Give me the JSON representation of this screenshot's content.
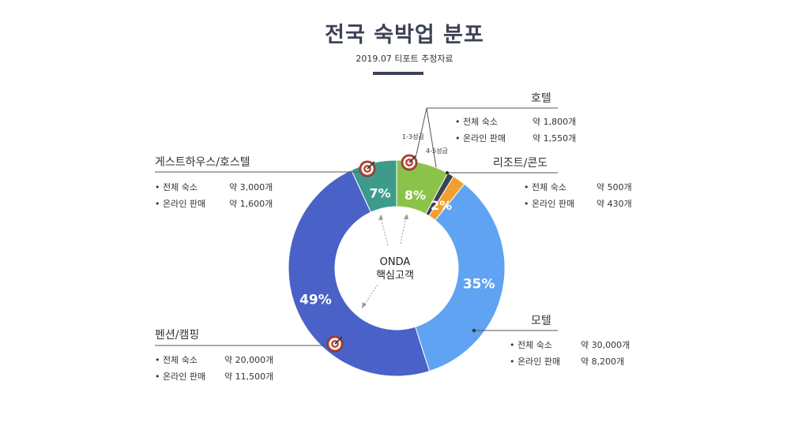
{
  "title": "전국 숙박업 분포",
  "subtitle": "2019.07 티포트 추정자료",
  "center": {
    "line1": "ONDA",
    "line2": "핵심고객"
  },
  "chart_data": {
    "type": "pie",
    "donut": true,
    "slices": [
      {
        "name": "호텔 1-3성급",
        "value": 8,
        "label": "8%",
        "color": "#8bc34a"
      },
      {
        "name": "호텔 4-5성급",
        "value": 1,
        "label": "",
        "color": "#3d4356"
      },
      {
        "name": "리조트/콘도",
        "value": 2,
        "label": "2%",
        "color": "#f0a030"
      },
      {
        "name": "모텔",
        "value": 35,
        "label": "35%",
        "color": "#5fa3f2"
      },
      {
        "name": "펜션/캠핑",
        "value": 49,
        "label": "49%",
        "color": "#4a62c7"
      },
      {
        "name": "게스트하우스/호스텔",
        "value": 7,
        "label": "7%",
        "color": "#3e9b8c"
      }
    ]
  },
  "hotel_sublabels": {
    "low": "1-3성급",
    "high": "4-5성급"
  },
  "categories": {
    "hotel": {
      "title": "호텔",
      "rows": [
        {
          "k": "전체 숙소",
          "v": "약 1,800개"
        },
        {
          "k": "온라인 판매",
          "v": "약 1,550개"
        }
      ]
    },
    "resort": {
      "title": "리조트/콘도",
      "rows": [
        {
          "k": "전체 숙소",
          "v": "약 500개"
        },
        {
          "k": "온라인 판매",
          "v": "약 430개"
        }
      ]
    },
    "motel": {
      "title": "모텔",
      "rows": [
        {
          "k": "전체 숙소",
          "v": "약 30,000개"
        },
        {
          "k": "온라인 판매",
          "v": "약 8,200개"
        }
      ]
    },
    "pension": {
      "title": "펜션/캠핑",
      "rows": [
        {
          "k": "전체 숙소",
          "v": "약 20,000개"
        },
        {
          "k": "온라인 판매",
          "v": "약 11,500개"
        }
      ]
    },
    "guest": {
      "title": "게스트하우스/호스텔",
      "rows": [
        {
          "k": "전체 숙소",
          "v": "약 3,000개"
        },
        {
          "k": "온라인 판매",
          "v": "약 1,600개"
        }
      ]
    }
  },
  "colors": {
    "title": "#3d4356",
    "line": "#555555",
    "target_red": "#b5473a"
  }
}
